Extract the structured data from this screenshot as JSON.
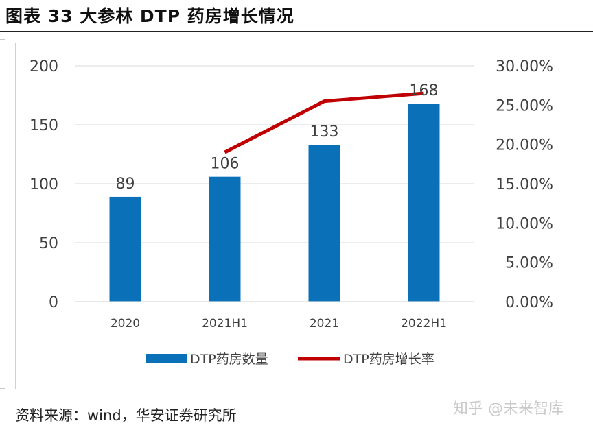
{
  "header": {
    "title": "图表 33  大参林 DTP 药房增长情况"
  },
  "footer": {
    "source": "资料来源：wind，华安证券研究所",
    "watermark": "知乎 @未来智库"
  },
  "colors": {
    "bar": "#0A71B9",
    "line": "#C00000",
    "grid": "#D9D9D9",
    "text": "#404040"
  },
  "chart_data": {
    "type": "bar",
    "categories": [
      "2020",
      "2021H1",
      "2021",
      "2022H1"
    ],
    "series": [
      {
        "name": "DTP药房数量",
        "kind": "bar",
        "axis": "left",
        "values": [
          89,
          106,
          133,
          168
        ],
        "data_labels": [
          "89",
          "106",
          "133",
          "168"
        ]
      },
      {
        "name": "DTP药房增长率",
        "kind": "line",
        "axis": "right",
        "values": [
          null,
          0.19,
          0.255,
          0.265
        ]
      }
    ],
    "y_left": {
      "min": 0,
      "max": 200,
      "ticks": [
        0,
        50,
        100,
        150,
        200
      ],
      "tick_labels": [
        "0",
        "50",
        "100",
        "150",
        "200"
      ]
    },
    "y_right": {
      "min": 0,
      "max": 0.3,
      "ticks": [
        0,
        0.05,
        0.1,
        0.15,
        0.2,
        0.25,
        0.3
      ],
      "tick_labels": [
        "0.00%",
        "5.00%",
        "10.00%",
        "15.00%",
        "20.00%",
        "25.00%",
        "30.00%"
      ]
    },
    "grid": true,
    "legend_position": "bottom"
  }
}
